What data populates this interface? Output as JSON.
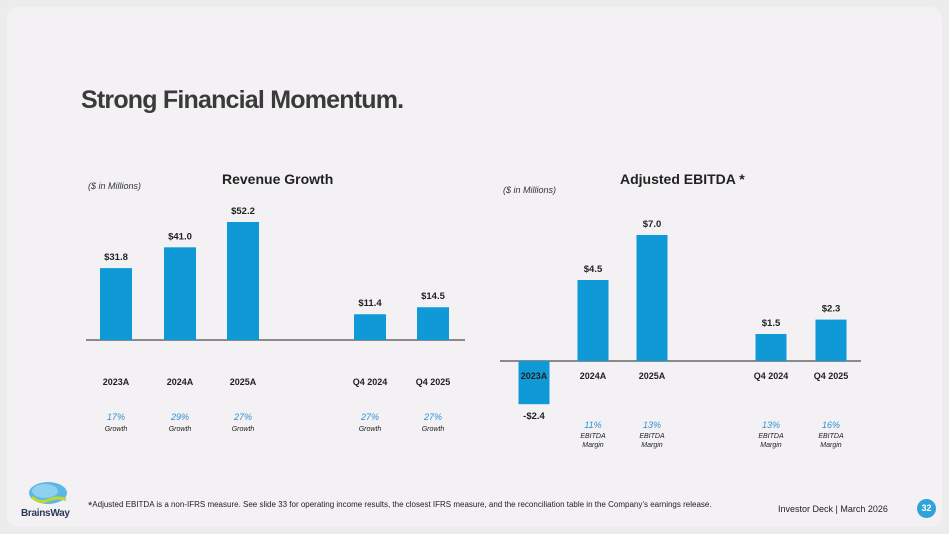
{
  "title": "Strong Financial Momentum.",
  "colors": {
    "bar": "#0f9ad7",
    "pct": "#2e8fcf",
    "text": "#222222"
  },
  "chart_data": [
    {
      "type": "bar",
      "title": "Revenue Growth",
      "units_label": "($ in Millions)",
      "categories": [
        "2023A",
        "2024A",
        "2025A",
        "Q4 2024",
        "Q4 2025"
      ],
      "values": [
        31.8,
        41.0,
        52.2,
        11.4,
        14.5
      ],
      "value_labels": [
        "$31.8",
        "$41.0",
        "$52.2",
        "$11.4",
        "$14.5"
      ],
      "sub_pct": [
        "17%",
        "29%",
        "27%",
        "27%",
        "27%"
      ],
      "sub_label": [
        "Growth",
        "Growth",
        "Growth",
        "Growth",
        "Growth"
      ],
      "ylim": [
        0,
        60
      ]
    },
    {
      "type": "bar",
      "title": "Adjusted EBITDA *",
      "units_label": "($ in Millions)",
      "categories": [
        "2023A",
        "2024A",
        "2025A",
        "Q4 2024",
        "Q4 2025"
      ],
      "values": [
        -2.4,
        4.5,
        7.0,
        1.5,
        2.3
      ],
      "value_labels": [
        "-$2.4",
        "$4.5",
        "$7.0",
        "$1.5",
        "$2.3"
      ],
      "sub_pct": [
        "",
        "11%",
        "13%",
        "13%",
        "16%"
      ],
      "sub_label": [
        "",
        "EBITDA Margin",
        "EBITDA Margin",
        "EBITDA Margin",
        "EBITDA Margin"
      ],
      "ylim": [
        -3,
        8
      ]
    }
  ],
  "footnote": {
    "star": "*",
    "text": "Adjusted EBITDA is a non-IFRS measure. See slide 33  for operating income results, the closest IFRS measure, and the reconciliation table in the Company’s earnings release."
  },
  "footer": {
    "deck": "Investor Deck | March 2026",
    "page": "32",
    "logo_text": "BrainsWay"
  }
}
